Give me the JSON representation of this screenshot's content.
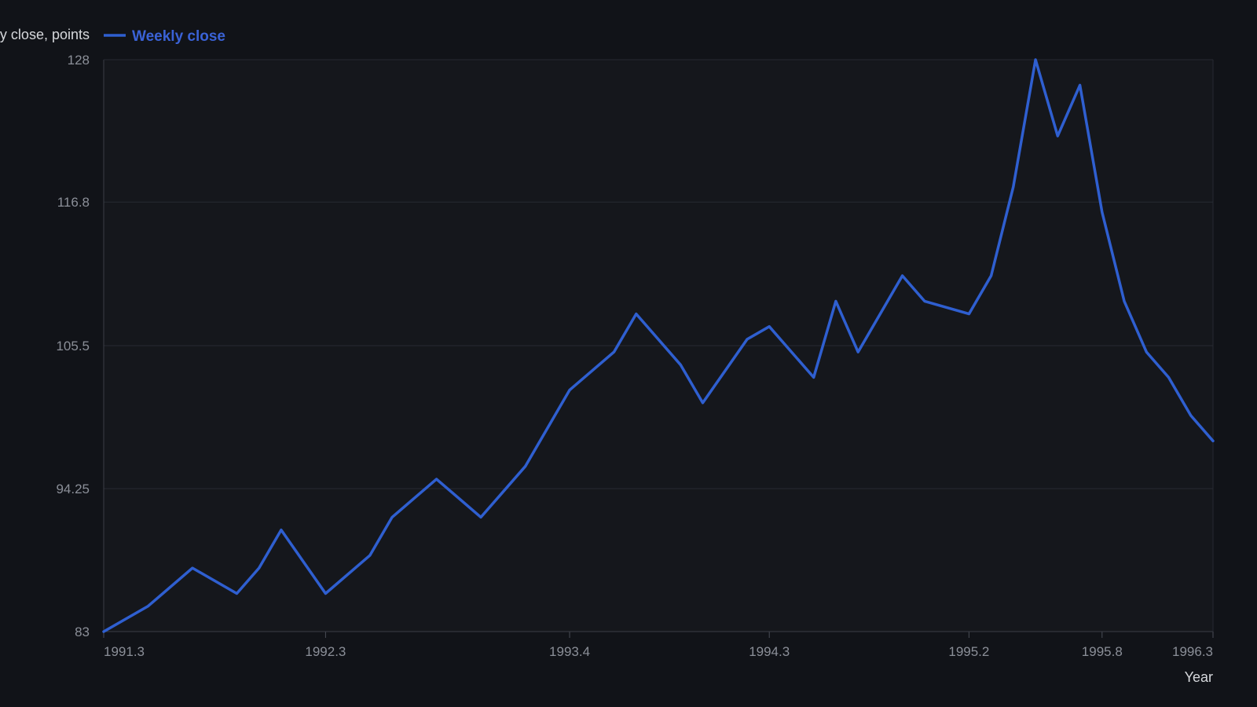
{
  "chart_data": {
    "type": "line",
    "ylabel": "Weekly close, points",
    "xlabel": "Year",
    "ylim": [
      83,
      128
    ],
    "xlim": [
      1991.3,
      1996.3
    ],
    "yticks": [
      "128",
      "116.8",
      "105.5",
      "94.25",
      "83"
    ],
    "xticks": [
      "1991.3",
      "1992.3",
      "1993.4",
      "1994.3",
      "1995.2",
      "1995.8",
      "1996.3"
    ],
    "grid": true,
    "legend": "top-left",
    "colors": {
      "line": "#2f5fd0",
      "background": "#15171c"
    },
    "series": [
      {
        "name": "Weekly close",
        "x": [
          1991.3,
          1991.5,
          1991.7,
          1991.9,
          1992.0,
          1992.1,
          1992.3,
          1992.5,
          1992.6,
          1992.8,
          1993.0,
          1993.2,
          1993.4,
          1993.6,
          1993.7,
          1993.9,
          1994.0,
          1994.2,
          1994.3,
          1994.5,
          1994.6,
          1994.7,
          1994.9,
          1995.0,
          1995.2,
          1995.3,
          1995.4,
          1995.5,
          1995.6,
          1995.7,
          1995.8,
          1995.9,
          1996.0,
          1996.1,
          1996.2,
          1996.3
        ],
        "values": [
          83.0,
          85.0,
          88.0,
          86.0,
          88.0,
          91.0,
          86.0,
          89.0,
          92.0,
          95.0,
          92.0,
          96.0,
          102.0,
          105.0,
          108.0,
          104.0,
          101.0,
          106.0,
          107.0,
          103.0,
          109.0,
          105.0,
          111.0,
          109.0,
          108.0,
          111.0,
          118.0,
          128.0,
          122.0,
          126.0,
          116.0,
          109.0,
          105.0,
          103.0,
          100.0,
          98.0
        ]
      }
    ]
  }
}
